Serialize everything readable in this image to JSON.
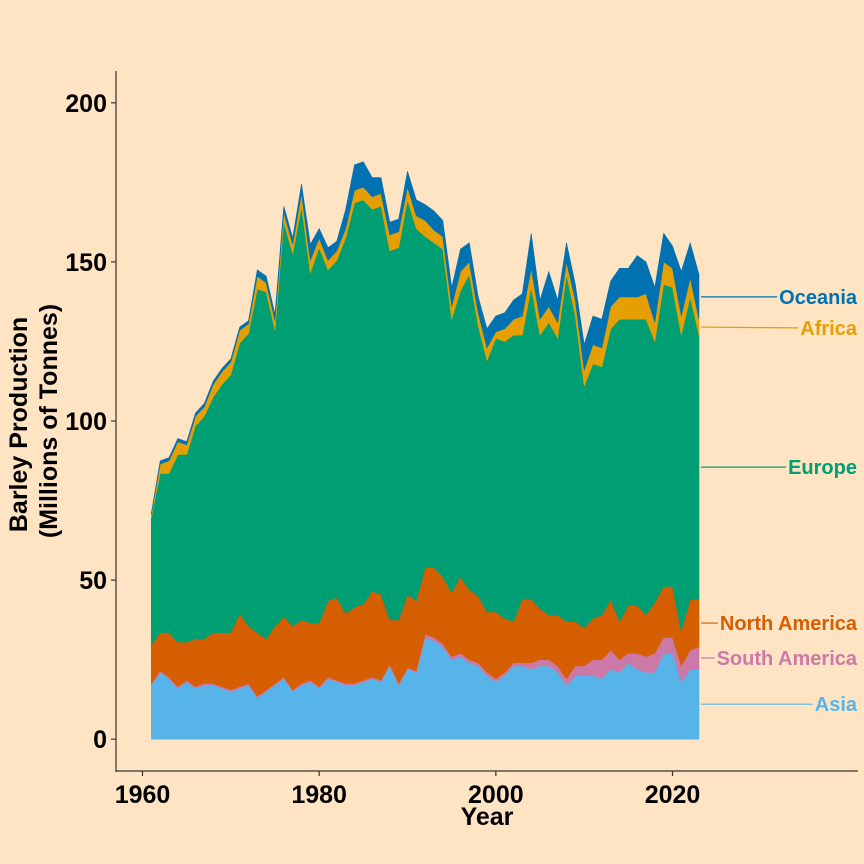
{
  "chart_data": {
    "type": "area",
    "stacked": true,
    "xlabel": "Year",
    "ylabel": [
      "Barley Production",
      "(Millions of Tonnes)"
    ],
    "xlim": [
      1957,
      2041
    ],
    "ylim": [
      -10,
      210
    ],
    "xticks": [
      1960,
      1980,
      2000,
      2020
    ],
    "yticks": [
      0,
      50,
      100,
      150,
      200
    ],
    "grid": false,
    "x": [
      1961,
      1962,
      1963,
      1964,
      1965,
      1966,
      1967,
      1968,
      1969,
      1970,
      1971,
      1972,
      1973,
      1974,
      1975,
      1976,
      1977,
      1978,
      1979,
      1980,
      1981,
      1982,
      1983,
      1984,
      1985,
      1986,
      1987,
      1988,
      1989,
      1990,
      1991,
      1992,
      1993,
      1994,
      1995,
      1996,
      1997,
      1998,
      1999,
      2000,
      2001,
      2002,
      2003,
      2004,
      2005,
      2006,
      2007,
      2008,
      2009,
      2010,
      2011,
      2012,
      2013,
      2014,
      2015,
      2016,
      2017,
      2018,
      2019,
      2020,
      2021,
      2022,
      2023
    ],
    "series": [
      {
        "name": "Asia",
        "color": "#56B4E9",
        "values": [
          17,
          21,
          19,
          16,
          18,
          16,
          17,
          17,
          16,
          15,
          16,
          17,
          13,
          15,
          17,
          19,
          15,
          17,
          18,
          16,
          19,
          18,
          17,
          17,
          18,
          19,
          18,
          23,
          17,
          22,
          21,
          32,
          31,
          29,
          25,
          26,
          24,
          23,
          20,
          18,
          20,
          23,
          23,
          22,
          23,
          23,
          21,
          17,
          20,
          20,
          20,
          19,
          22,
          21,
          24,
          22,
          21,
          21,
          27,
          27,
          18,
          22,
          22
        ]
      },
      {
        "name": "South America",
        "color": "#CC79A7",
        "values": [
          0.5,
          0.5,
          0.5,
          0.5,
          0.5,
          0.5,
          0.5,
          0.5,
          0.5,
          0.5,
          0.5,
          0.5,
          0.5,
          0.5,
          0.5,
          0.5,
          0.5,
          0.5,
          0.5,
          0.5,
          0.5,
          0.5,
          0.5,
          0.5,
          0.5,
          0.5,
          0.5,
          0.5,
          0.5,
          0.5,
          0.5,
          1,
          1,
          1,
          1,
          1,
          1,
          1,
          1,
          1,
          1,
          1,
          1,
          2,
          2,
          2,
          2,
          2,
          3,
          3,
          5,
          6,
          6,
          4,
          3,
          5,
          5,
          6,
          5,
          5,
          5,
          6,
          7
        ]
      },
      {
        "name": "North America",
        "color": "#D55E00",
        "values": [
          12,
          12,
          14,
          14,
          12,
          15,
          14,
          16,
          17,
          18,
          23,
          18,
          20,
          16,
          18,
          19,
          20,
          20,
          18,
          20,
          24,
          26,
          22,
          24,
          24,
          27,
          27,
          14,
          20,
          23,
          22,
          21,
          22,
          21,
          20,
          24,
          22,
          21,
          19,
          21,
          17,
          13,
          20,
          20,
          16,
          14,
          16,
          18,
          14,
          12,
          13,
          14,
          16,
          12,
          15,
          15,
          13,
          16,
          16,
          16,
          11,
          16,
          15
        ]
      },
      {
        "name": "Europe",
        "color": "#009E73",
        "values": [
          40,
          50,
          50,
          59,
          59,
          67,
          70,
          74,
          78,
          81,
          85,
          92,
          108,
          109,
          93,
          124,
          117,
          130,
          110,
          118,
          104,
          106,
          118,
          127,
          127,
          120,
          122,
          116,
          117,
          124,
          117,
          104,
          102,
          103,
          86,
          90,
          99,
          85,
          79,
          86,
          87,
          90,
          83,
          98,
          86,
          92,
          87,
          109,
          96,
          76,
          80,
          78,
          85,
          95,
          90,
          90,
          93,
          82,
          95,
          94,
          93,
          95,
          83
        ]
      },
      {
        "name": "Africa",
        "color": "#E69F00",
        "values": [
          1,
          3,
          4,
          4,
          3,
          3,
          3,
          4,
          4,
          4,
          4,
          3,
          4,
          3,
          3,
          3,
          3,
          4,
          4,
          3,
          3,
          3,
          3,
          4,
          4,
          4,
          4,
          5,
          5,
          4,
          4,
          5,
          4,
          4,
          4,
          6,
          4,
          4,
          4,
          2,
          4,
          5,
          6,
          6,
          5,
          5,
          5,
          4,
          5,
          5,
          6,
          6,
          7,
          7,
          7,
          7,
          8,
          6,
          7,
          6,
          6,
          6,
          5
        ]
      },
      {
        "name": "Oceania",
        "color": "#0072B2",
        "values": [
          0.5,
          1,
          1,
          1,
          1,
          1,
          1,
          1,
          1,
          1,
          1,
          1,
          2,
          2,
          2,
          2,
          2,
          3,
          5,
          3,
          4,
          3,
          6,
          8,
          8,
          6,
          5,
          4,
          4,
          5,
          5,
          5,
          6,
          5,
          6,
          7,
          6,
          5,
          6,
          5,
          5,
          6,
          7,
          11,
          6,
          11,
          7,
          6,
          5,
          8,
          9,
          9,
          8,
          9,
          9,
          13,
          10,
          11,
          9,
          7,
          14,
          11,
          14
        ]
      }
    ]
  }
}
